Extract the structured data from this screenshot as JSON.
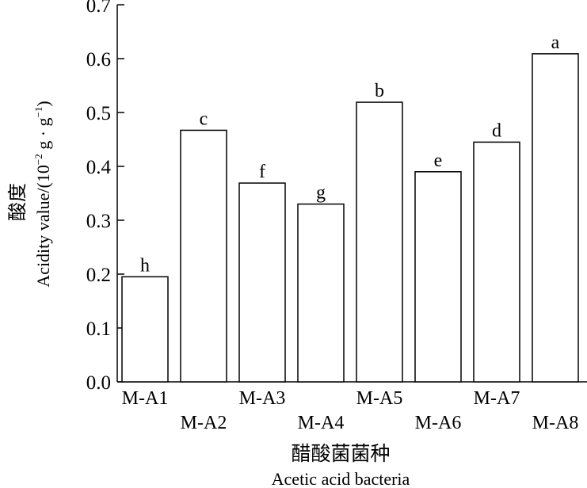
{
  "chart_data": {
    "type": "bar",
    "categories": [
      "M-A1",
      "M-A2",
      "M-A3",
      "M-A4",
      "M-A5",
      "M-A6",
      "M-A7",
      "M-A8"
    ],
    "values": [
      0.195,
      0.467,
      0.369,
      0.33,
      0.519,
      0.39,
      0.445,
      0.609
    ],
    "significance_letters": [
      "h",
      "c",
      "f",
      "g",
      "b",
      "e",
      "d",
      "a"
    ],
    "ylim": [
      0,
      0.7
    ],
    "yticks": [
      "0.0",
      "0.1",
      "0.2",
      "0.3",
      "0.4",
      "0.5",
      "0.6",
      "0.7"
    ],
    "ylabel_cn": "酸度",
    "ylabel_en_main": "Acidity value/(10",
    "ylabel_en_sup1": "−2",
    "ylabel_en_mid": " g · g",
    "ylabel_en_sup2": "−1",
    "ylabel_en_end": ")",
    "xlabel_cn": "醋酸菌菌种",
    "xlabel_en": "Acetic acid bacteria",
    "grid": false,
    "bar_fill": "#ffffff",
    "bar_stroke": "#000000"
  }
}
